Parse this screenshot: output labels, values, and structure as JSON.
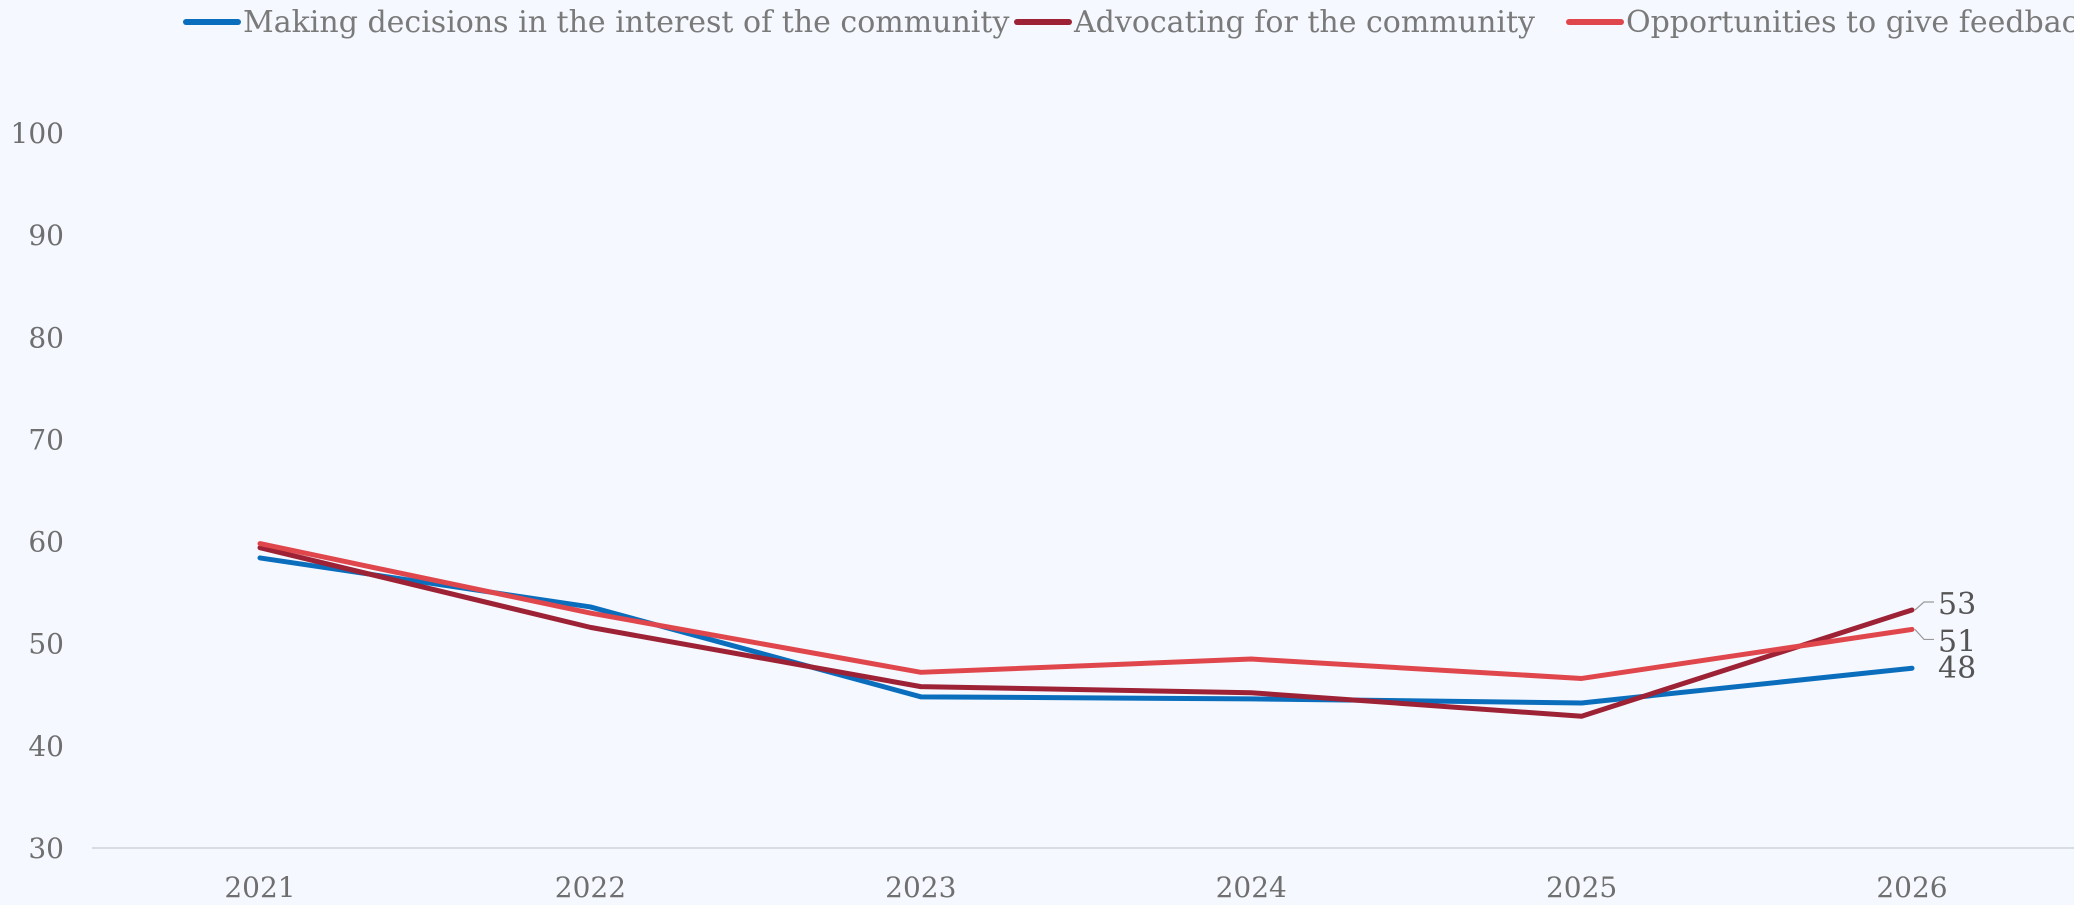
{
  "chart_data": {
    "type": "line",
    "title": "",
    "xlabel": "",
    "ylabel": "",
    "categories": [
      "2021",
      "2022",
      "2023",
      "2024",
      "2025",
      "2026"
    ],
    "ylim": [
      30,
      100
    ],
    "yticks": [
      30,
      40,
      50,
      60,
      70,
      80,
      90,
      100
    ],
    "grid": false,
    "legend_position": "top",
    "series": [
      {
        "name": "Making decisions in the interest of the community",
        "color": "#0a6ebd",
        "values": [
          58.4,
          53.6,
          44.8,
          44.6,
          44.2,
          47.6
        ],
        "end_label": "48"
      },
      {
        "name": "Advocating for the community",
        "color": "#9e2235",
        "values": [
          59.4,
          51.6,
          45.8,
          45.2,
          42.9,
          53.3
        ],
        "end_label": "53"
      },
      {
        "name": "Opportunities to give feedback",
        "color": "#e0474c",
        "values": [
          59.8,
          53.0,
          47.2,
          48.5,
          46.6,
          51.4
        ],
        "end_label": "51"
      }
    ]
  }
}
